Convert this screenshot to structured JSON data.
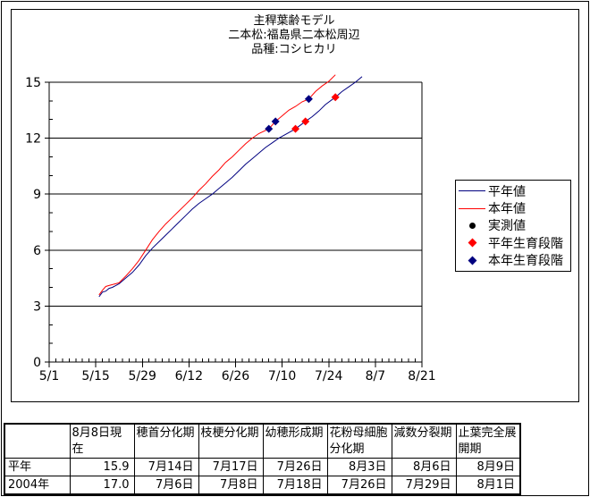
{
  "colors": {
    "normal_year": "#000080",
    "this_year": "#ff0000",
    "observed": "#000000",
    "axis": "#000000",
    "background": "#ffffff"
  },
  "chart_data": {
    "type": "line",
    "title_lines": [
      "主稈葉齢モデル",
      "二本松:福島県二本松周辺",
      "品種:コシヒカリ"
    ],
    "x_axis": {
      "tick_labels": [
        "5/1",
        "5/15",
        "5/29",
        "6/12",
        "6/26",
        "7/10",
        "7/24",
        "8/7",
        "8/21"
      ],
      "tick_days": [
        0,
        14,
        28,
        42,
        56,
        70,
        84,
        98,
        112
      ],
      "minor_step_days": 2,
      "range_days": [
        0,
        112
      ]
    },
    "y_axis": {
      "tick_labels": [
        "0",
        "3",
        "6",
        "9",
        "12",
        "15"
      ],
      "ticks": [
        0,
        3,
        6,
        9,
        12,
        15
      ],
      "minor_step": 1,
      "range": [
        0,
        15
      ]
    },
    "grid": "horizontal-major",
    "legend_position": "right",
    "series": [
      {
        "name": "平年値",
        "type": "line",
        "color": "#000080",
        "points": [
          [
            "5/16",
            3.5
          ],
          [
            "5/17",
            3.75
          ],
          [
            "5/18",
            3.8
          ],
          [
            "5/19",
            3.95
          ],
          [
            "5/20",
            4.0
          ],
          [
            "5/22",
            4.2
          ],
          [
            "5/24",
            4.5
          ],
          [
            "5/26",
            4.8
          ],
          [
            "5/28",
            5.2
          ],
          [
            "5/30",
            5.7
          ],
          [
            "6/1",
            6.1
          ],
          [
            "6/3",
            6.45
          ],
          [
            "6/5",
            6.8
          ],
          [
            "6/7",
            7.15
          ],
          [
            "6/9",
            7.5
          ],
          [
            "6/11",
            7.85
          ],
          [
            "6/13",
            8.2
          ],
          [
            "6/15",
            8.5
          ],
          [
            "6/17",
            8.75
          ],
          [
            "6/19",
            9.0
          ],
          [
            "6/21",
            9.3
          ],
          [
            "6/23",
            9.6
          ],
          [
            "6/25",
            9.9
          ],
          [
            "6/27",
            10.25
          ],
          [
            "6/29",
            10.6
          ],
          [
            "7/1",
            10.9
          ],
          [
            "7/3",
            11.2
          ],
          [
            "7/5",
            11.5
          ],
          [
            "7/7",
            11.75
          ],
          [
            "7/9",
            12.0
          ],
          [
            "7/11",
            12.2
          ],
          [
            "7/14",
            12.5
          ],
          [
            "7/17",
            12.9
          ],
          [
            "7/19",
            13.15
          ],
          [
            "7/21",
            13.45
          ],
          [
            "7/23",
            13.8
          ],
          [
            "7/26",
            14.2
          ],
          [
            "7/28",
            14.5
          ],
          [
            "7/30",
            14.75
          ],
          [
            "8/1",
            15.0
          ],
          [
            "8/3",
            15.3
          ]
        ]
      },
      {
        "name": "本年値",
        "type": "line",
        "color": "#ff0000",
        "points": [
          [
            "5/16",
            3.6
          ],
          [
            "5/17",
            3.85
          ],
          [
            "5/18",
            4.05
          ],
          [
            "5/19",
            4.1
          ],
          [
            "5/20",
            4.15
          ],
          [
            "5/21",
            4.2
          ],
          [
            "5/22",
            4.25
          ],
          [
            "5/24",
            4.6
          ],
          [
            "5/26",
            5.0
          ],
          [
            "5/28",
            5.45
          ],
          [
            "5/30",
            6.0
          ],
          [
            "6/1",
            6.55
          ],
          [
            "6/3",
            7.0
          ],
          [
            "6/5",
            7.4
          ],
          [
            "6/7",
            7.75
          ],
          [
            "6/9",
            8.1
          ],
          [
            "6/11",
            8.45
          ],
          [
            "6/13",
            8.8
          ],
          [
            "6/15",
            9.2
          ],
          [
            "6/17",
            9.55
          ],
          [
            "6/19",
            9.95
          ],
          [
            "6/21",
            10.3
          ],
          [
            "6/23",
            10.7
          ],
          [
            "6/25",
            11.0
          ],
          [
            "6/27",
            11.35
          ],
          [
            "6/29",
            11.7
          ],
          [
            "7/1",
            12.0
          ],
          [
            "7/3",
            12.25
          ],
          [
            "7/6",
            12.5
          ],
          [
            "7/8",
            12.9
          ],
          [
            "7/10",
            13.2
          ],
          [
            "7/12",
            13.5
          ],
          [
            "7/14",
            13.7
          ],
          [
            "7/16",
            13.95
          ],
          [
            "7/18",
            14.1
          ],
          [
            "7/20",
            14.5
          ],
          [
            "7/22",
            14.8
          ],
          [
            "7/24",
            15.05
          ],
          [
            "7/26",
            15.4
          ]
        ]
      },
      {
        "name": "実測値",
        "type": "scatter-circle",
        "color": "#000000",
        "points": []
      },
      {
        "name": "平年生育段階",
        "type": "scatter-diamond",
        "color": "#ff0000",
        "points": [
          [
            "7/14",
            12.5
          ],
          [
            "7/17",
            12.9
          ],
          [
            "7/26",
            14.2
          ]
        ]
      },
      {
        "name": "本年生育段階",
        "type": "scatter-diamond",
        "color": "#000080",
        "points": [
          [
            "7/6",
            12.5
          ],
          [
            "7/8",
            12.9
          ],
          [
            "7/18",
            14.1
          ]
        ]
      }
    ]
  },
  "table": {
    "columns": [
      "",
      "8月8日現在",
      "穂首分化期",
      "枝梗分化期",
      "幼穂形成期",
      "花粉母細胞分化期",
      "減数分裂期",
      "止葉完全展開期"
    ],
    "rows": [
      {
        "label": "平年",
        "values": [
          "15.9",
          "7月14日",
          "7月17日",
          "7月26日",
          "8月3日",
          "8月6日",
          "8月9日"
        ]
      },
      {
        "label": "2004年",
        "values": [
          "17.0",
          "7月6日",
          "7月8日",
          "7月18日",
          "7月26日",
          "7月29日",
          "8月1日"
        ]
      }
    ]
  }
}
